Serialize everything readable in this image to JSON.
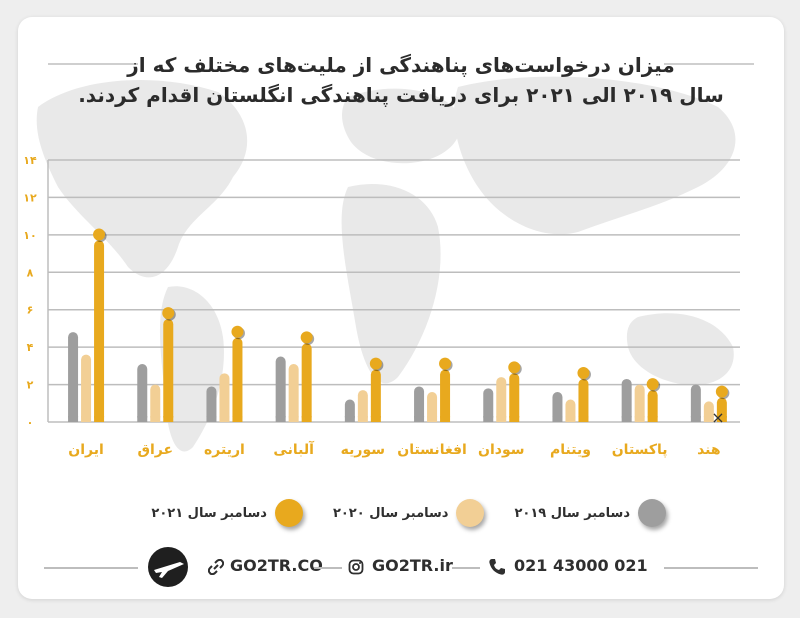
{
  "title_lines": [
    "میزان درخواست‌های پناهندگی از ملیت‌های مختلف که از",
    "سال ۲۰۱۹ الی ۲۰۲۱ برای دریافت پناهندگی انگلستان اقدام کردند."
  ],
  "chart_data": {
    "type": "bar",
    "categories": [
      "ایران",
      "عراق",
      "اریتره",
      "آلبانی",
      "سوریه",
      "افغانستان",
      "سودان",
      "ویتنام",
      "پاکستان",
      "هند"
    ],
    "series": [
      {
        "name": "دسامبر سال ۲۰۱۹",
        "color": "#9e9e9e",
        "values": [
          4.8,
          3.1,
          1.9,
          3.5,
          1.2,
          1.9,
          1.8,
          1.6,
          2.3,
          2.0
        ]
      },
      {
        "name": "دسامبر سال ۲۰۲۰",
        "color": "#f2cf95",
        "values": [
          3.6,
          2.0,
          2.6,
          3.1,
          1.7,
          1.6,
          2.4,
          1.2,
          2.0,
          1.1
        ]
      },
      {
        "name": "دسامبر سال ۲۰۲۱",
        "color": "#e8a91e",
        "values": [
          9.7,
          5.5,
          4.5,
          4.2,
          2.8,
          2.8,
          2.6,
          2.3,
          1.7,
          1.3
        ]
      }
    ],
    "y_ticks": [
      "۰",
      "۲",
      "۴",
      "۶",
      "۸",
      "۱۰",
      "۱۲",
      "۱۴"
    ],
    "ylim": [
      0,
      14
    ],
    "grid": true,
    "legend_position": "bottom",
    "annotation": "×"
  },
  "footer": {
    "website": "GO2TR.CO",
    "instagram": "GO2TR.ir",
    "phone": "021 43000 021",
    "logo_icon": "plane-logo-icon",
    "link_icon": "link-icon",
    "instagram_icon": "instagram-icon",
    "phone_icon": "phone-icon"
  }
}
